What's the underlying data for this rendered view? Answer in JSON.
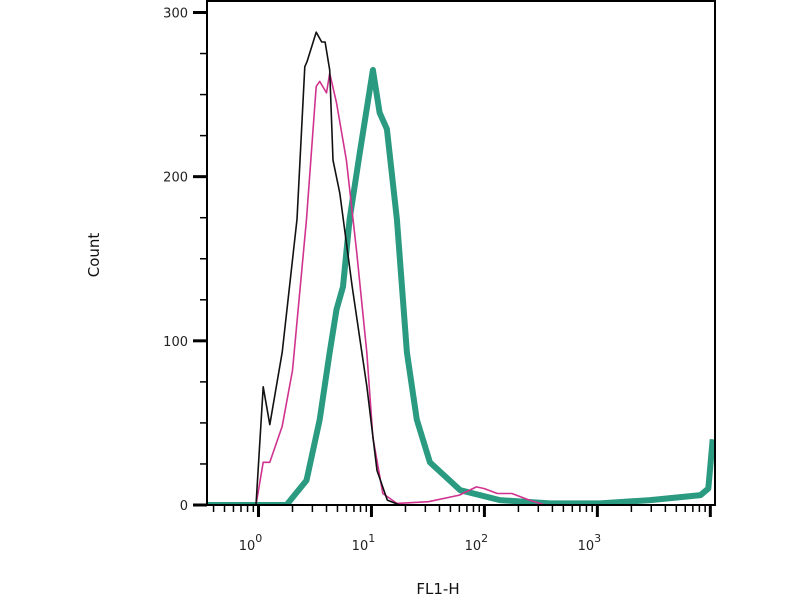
{
  "chart_data": {
    "type": "line",
    "title": "",
    "xlabel": "FL1-H",
    "ylabel": "Count",
    "x_scale": "log",
    "xlim": [
      0.35,
      11000
    ],
    "ylim": [
      0,
      307
    ],
    "x_ticks": [
      {
        "base": "10",
        "exp": "0",
        "value": 1
      },
      {
        "base": "10",
        "exp": "1",
        "value": 10
      },
      {
        "base": "10",
        "exp": "2",
        "value": 100
      },
      {
        "base": "10",
        "exp": "3",
        "value": 1000
      }
    ],
    "y_ticks": [
      0,
      100,
      200,
      300
    ],
    "y_minor_step": 25,
    "grid": false,
    "legend": "none",
    "series": [
      {
        "color": "#111111",
        "points": [
          [
            0.35,
            0
          ],
          [
            0.89,
            0
          ],
          [
            0.95,
            0
          ],
          [
            1.1,
            72
          ],
          [
            1.26,
            49
          ],
          [
            1.62,
            93
          ],
          [
            2.19,
            174
          ],
          [
            2.57,
            267
          ],
          [
            2.69,
            270
          ],
          [
            3.24,
            288
          ],
          [
            3.63,
            282
          ],
          [
            3.89,
            282
          ],
          [
            4.27,
            265
          ],
          [
            4.57,
            210
          ],
          [
            5.25,
            190
          ],
          [
            6.76,
            133
          ],
          [
            9.12,
            72
          ],
          [
            11.2,
            21
          ],
          [
            13.8,
            3
          ],
          [
            17.8,
            0
          ]
        ]
      },
      {
        "color": "#d0338f",
        "points": [
          [
            0.89,
            0
          ],
          [
            0.95,
            0
          ],
          [
            1.1,
            26
          ],
          [
            1.26,
            26
          ],
          [
            1.62,
            48
          ],
          [
            2.0,
            82
          ],
          [
            2.66,
            174
          ],
          [
            3.24,
            255
          ],
          [
            3.48,
            258
          ],
          [
            4.0,
            251
          ],
          [
            4.27,
            263
          ],
          [
            4.9,
            245
          ],
          [
            6.0,
            210
          ],
          [
            7.4,
            154
          ],
          [
            9.1,
            93
          ],
          [
            10.3,
            41
          ],
          [
            12.6,
            7
          ],
          [
            16.8,
            1
          ],
          [
            32,
            2
          ],
          [
            60,
            6
          ],
          [
            85,
            11
          ],
          [
            100,
            10
          ],
          [
            130,
            7
          ],
          [
            175,
            7
          ],
          [
            250,
            3
          ],
          [
            345,
            0
          ]
        ]
      },
      {
        "color": "#2a9a80",
        "points": [
          [
            0.35,
            0
          ],
          [
            1.77,
            0
          ],
          [
            2.66,
            15
          ],
          [
            3.48,
            52
          ],
          [
            4.27,
            93
          ],
          [
            4.9,
            119
          ],
          [
            5.6,
            133
          ],
          [
            6.4,
            174
          ],
          [
            7.9,
            215
          ],
          [
            10.3,
            265
          ],
          [
            11.8,
            239
          ],
          [
            13.7,
            229
          ],
          [
            16.8,
            174
          ],
          [
            20.6,
            93
          ],
          [
            25.2,
            52
          ],
          [
            32.9,
            26
          ],
          [
            61,
            9
          ],
          [
            137,
            3
          ],
          [
            380,
            1
          ],
          [
            1060,
            1
          ],
          [
            2940,
            3
          ],
          [
            8200,
            6
          ],
          [
            9600,
            10
          ],
          [
            10500,
            40
          ]
        ]
      }
    ]
  }
}
